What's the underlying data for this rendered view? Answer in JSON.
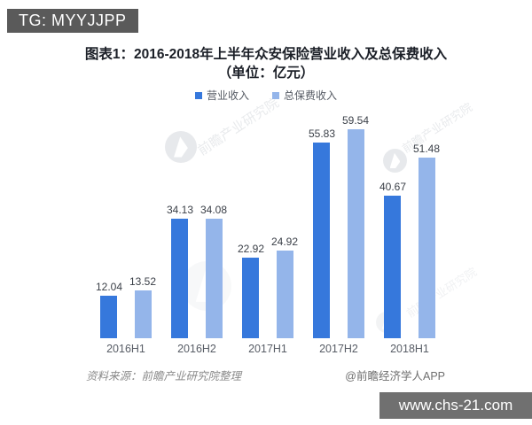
{
  "header_tag": "TG: MYYJJPP",
  "title": {
    "line1": "图表1：2016-2018年上半年众安保险营业收入及总保费收入",
    "line2": "（单位：亿元）"
  },
  "chart_data": {
    "type": "bar",
    "title": "2016-2018年上半年众安保险营业收入及总保费收入",
    "unit_label": "（单位：亿元）",
    "categories": [
      "2016H1",
      "2016H2",
      "2017H1",
      "2017H2",
      "2018H1"
    ],
    "series": [
      {
        "name": "营业收入",
        "color": "#3678dc",
        "values": [
          12.04,
          34.13,
          22.92,
          55.83,
          40.67
        ]
      },
      {
        "name": "总保费收入",
        "color": "#94b5ea",
        "values": [
          13.52,
          34.08,
          24.92,
          59.54,
          51.48
        ]
      }
    ],
    "ylim": [
      0,
      63.6
    ],
    "grid": false,
    "legend_position": "top",
    "value_labels": true,
    "value_label_decimals": 2
  },
  "footer": {
    "source": "资料来源：前瞻产业研究院整理",
    "credit": "@前瞻经济学人APP"
  },
  "watermark": {
    "site": "www.chs-21.com",
    "brand_text": "前瞻产业研究院"
  }
}
